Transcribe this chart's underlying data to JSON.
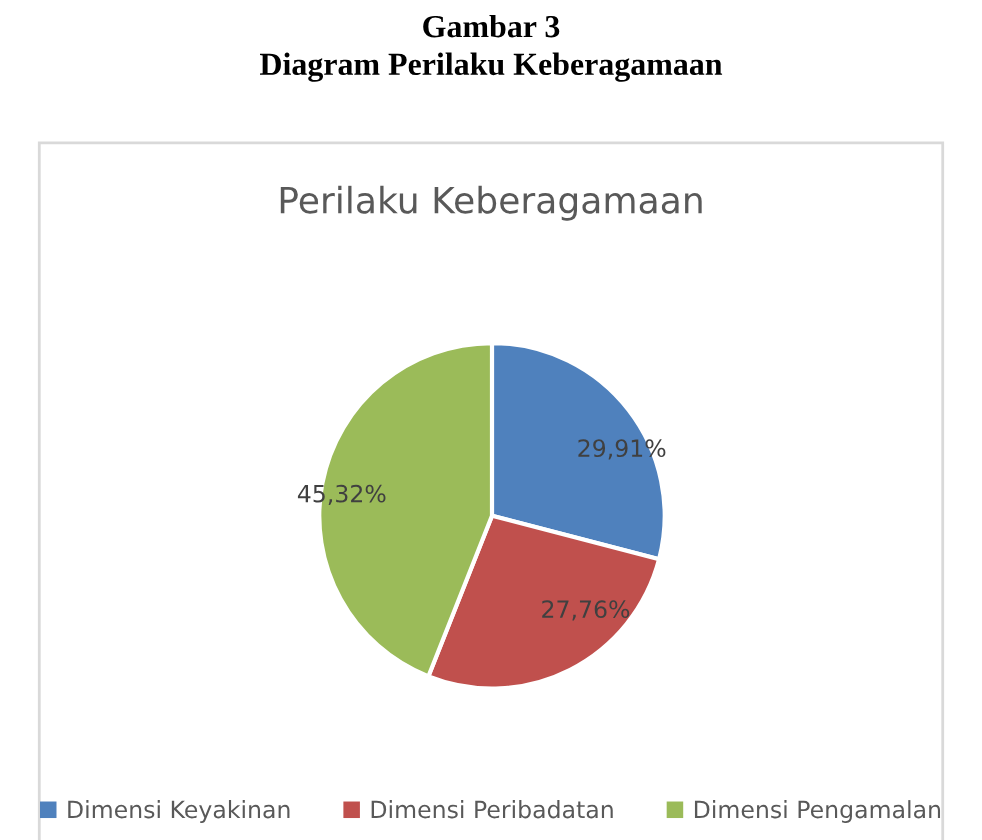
{
  "chart_data": {
    "type": "pie",
    "title": "Perilaku Keberagamaan",
    "annotations": [
      "Gambar 3",
      "Diagram Perilaku Keberagamaan"
    ],
    "categories": [
      "Dimensi Keyakinan",
      "Dimensi Peribadatan",
      "Dimensi Pengamalan"
    ],
    "values": [
      29.91,
      27.76,
      45.32
    ],
    "value_labels": [
      "29,91%",
      "27,76%",
      "45,32%"
    ],
    "colors": [
      "#4f81bd",
      "#c0504d",
      "#9bbb59"
    ],
    "legend": "bottom"
  }
}
